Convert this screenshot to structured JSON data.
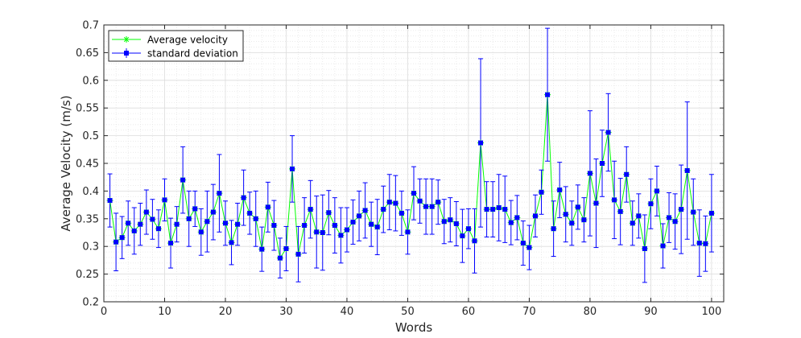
{
  "chart_data": {
    "type": "line",
    "xlabel": "Words",
    "ylabel": "Average Velocity (m/s)",
    "xlim": [
      0,
      102
    ],
    "ylim": [
      0.2,
      0.7
    ],
    "xticks": [
      0,
      10,
      20,
      30,
      40,
      50,
      60,
      70,
      80,
      90,
      100
    ],
    "yticks": [
      0.2,
      0.25,
      0.3,
      0.35,
      0.4,
      0.45,
      0.5,
      0.55,
      0.6,
      0.65,
      0.7
    ],
    "grid": true,
    "minor_grid": true,
    "legend_location": "top-left",
    "x": [
      1,
      2,
      3,
      4,
      5,
      6,
      7,
      8,
      9,
      10,
      11,
      12,
      13,
      14,
      15,
      16,
      17,
      18,
      19,
      20,
      21,
      22,
      23,
      24,
      25,
      26,
      27,
      28,
      29,
      30,
      31,
      32,
      33,
      34,
      35,
      36,
      37,
      38,
      39,
      40,
      41,
      42,
      43,
      44,
      45,
      46,
      47,
      48,
      49,
      50,
      51,
      52,
      53,
      54,
      55,
      56,
      57,
      58,
      59,
      60,
      61,
      62,
      63,
      64,
      65,
      66,
      67,
      68,
      69,
      70,
      71,
      72,
      73,
      74,
      75,
      76,
      77,
      78,
      79,
      80,
      81,
      82,
      83,
      84,
      85,
      86,
      87,
      88,
      89,
      90,
      91,
      92,
      93,
      94,
      95,
      96,
      97,
      98,
      99,
      100
    ],
    "series": [
      {
        "name": "Average velocity",
        "color": "#00ff00",
        "marker": "asterisk",
        "values": [
          0.383,
          0.308,
          0.316,
          0.342,
          0.328,
          0.34,
          0.362,
          0.349,
          0.332,
          0.384,
          0.306,
          0.34,
          0.42,
          0.35,
          0.368,
          0.326,
          0.345,
          0.362,
          0.396,
          0.342,
          0.307,
          0.34,
          0.388,
          0.36,
          0.35,
          0.295,
          0.371,
          0.338,
          0.279,
          0.296,
          0.44,
          0.286,
          0.338,
          0.367,
          0.326,
          0.325,
          0.361,
          0.338,
          0.32,
          0.33,
          0.344,
          0.355,
          0.365,
          0.34,
          0.335,
          0.367,
          0.38,
          0.378,
          0.36,
          0.326,
          0.396,
          0.382,
          0.372,
          0.372,
          0.38,
          0.345,
          0.348,
          0.341,
          0.319,
          0.332,
          0.31,
          0.487,
          0.367,
          0.367,
          0.37,
          0.367,
          0.343,
          0.352,
          0.306,
          0.298,
          0.355,
          0.398,
          0.574,
          0.332,
          0.402,
          0.358,
          0.342,
          0.371,
          0.348,
          0.432,
          0.378,
          0.45,
          0.506,
          0.384,
          0.363,
          0.43,
          0.342,
          0.355,
          0.296,
          0.377,
          0.4,
          0.301,
          0.352,
          0.345,
          0.367,
          0.437,
          0.362,
          0.306,
          0.305,
          0.36
        ]
      },
      {
        "name": "standard deviation",
        "color": "#0000ff",
        "marker": "square",
        "values": [
          0.383,
          0.308,
          0.316,
          0.342,
          0.328,
          0.34,
          0.362,
          0.349,
          0.332,
          0.384,
          0.306,
          0.34,
          0.42,
          0.35,
          0.368,
          0.326,
          0.345,
          0.362,
          0.396,
          0.342,
          0.307,
          0.34,
          0.388,
          0.36,
          0.35,
          0.295,
          0.371,
          0.338,
          0.279,
          0.296,
          0.44,
          0.286,
          0.338,
          0.367,
          0.326,
          0.325,
          0.361,
          0.338,
          0.32,
          0.33,
          0.344,
          0.355,
          0.365,
          0.34,
          0.335,
          0.367,
          0.38,
          0.378,
          0.36,
          0.326,
          0.396,
          0.382,
          0.372,
          0.372,
          0.38,
          0.345,
          0.348,
          0.341,
          0.319,
          0.332,
          0.31,
          0.487,
          0.367,
          0.367,
          0.37,
          0.367,
          0.343,
          0.352,
          0.306,
          0.298,
          0.355,
          0.398,
          0.574,
          0.332,
          0.402,
          0.358,
          0.342,
          0.371,
          0.348,
          0.432,
          0.378,
          0.45,
          0.506,
          0.384,
          0.363,
          0.43,
          0.342,
          0.355,
          0.296,
          0.377,
          0.4,
          0.301,
          0.352,
          0.345,
          0.367,
          0.437,
          0.362,
          0.306,
          0.305,
          0.36
        ],
        "errors": [
          0.048,
          0.052,
          0.038,
          0.04,
          0.042,
          0.038,
          0.04,
          0.036,
          0.034,
          0.038,
          0.045,
          0.032,
          0.06,
          0.05,
          0.032,
          0.042,
          0.055,
          0.05,
          0.07,
          0.04,
          0.04,
          0.038,
          0.05,
          0.038,
          0.05,
          0.04,
          0.045,
          0.045,
          0.036,
          0.04,
          0.06,
          0.05,
          0.05,
          0.052,
          0.065,
          0.068,
          0.04,
          0.05,
          0.05,
          0.04,
          0.04,
          0.045,
          0.05,
          0.04,
          0.05,
          0.042,
          0.05,
          0.05,
          0.04,
          0.04,
          0.048,
          0.04,
          0.05,
          0.05,
          0.04,
          0.04,
          0.04,
          0.04,
          0.048,
          0.036,
          0.058,
          0.152,
          0.05,
          0.05,
          0.06,
          0.06,
          0.04,
          0.04,
          0.04,
          0.04,
          0.038,
          0.04,
          0.12,
          0.05,
          0.05,
          0.05,
          0.04,
          0.04,
          0.04,
          0.113,
          0.08,
          0.06,
          0.07,
          0.07,
          0.06,
          0.05,
          0.04,
          0.04,
          0.061,
          0.045,
          0.045,
          0.04,
          0.045,
          0.05,
          0.08,
          0.124,
          0.06,
          0.06,
          0.05,
          0.07
        ]
      }
    ]
  }
}
